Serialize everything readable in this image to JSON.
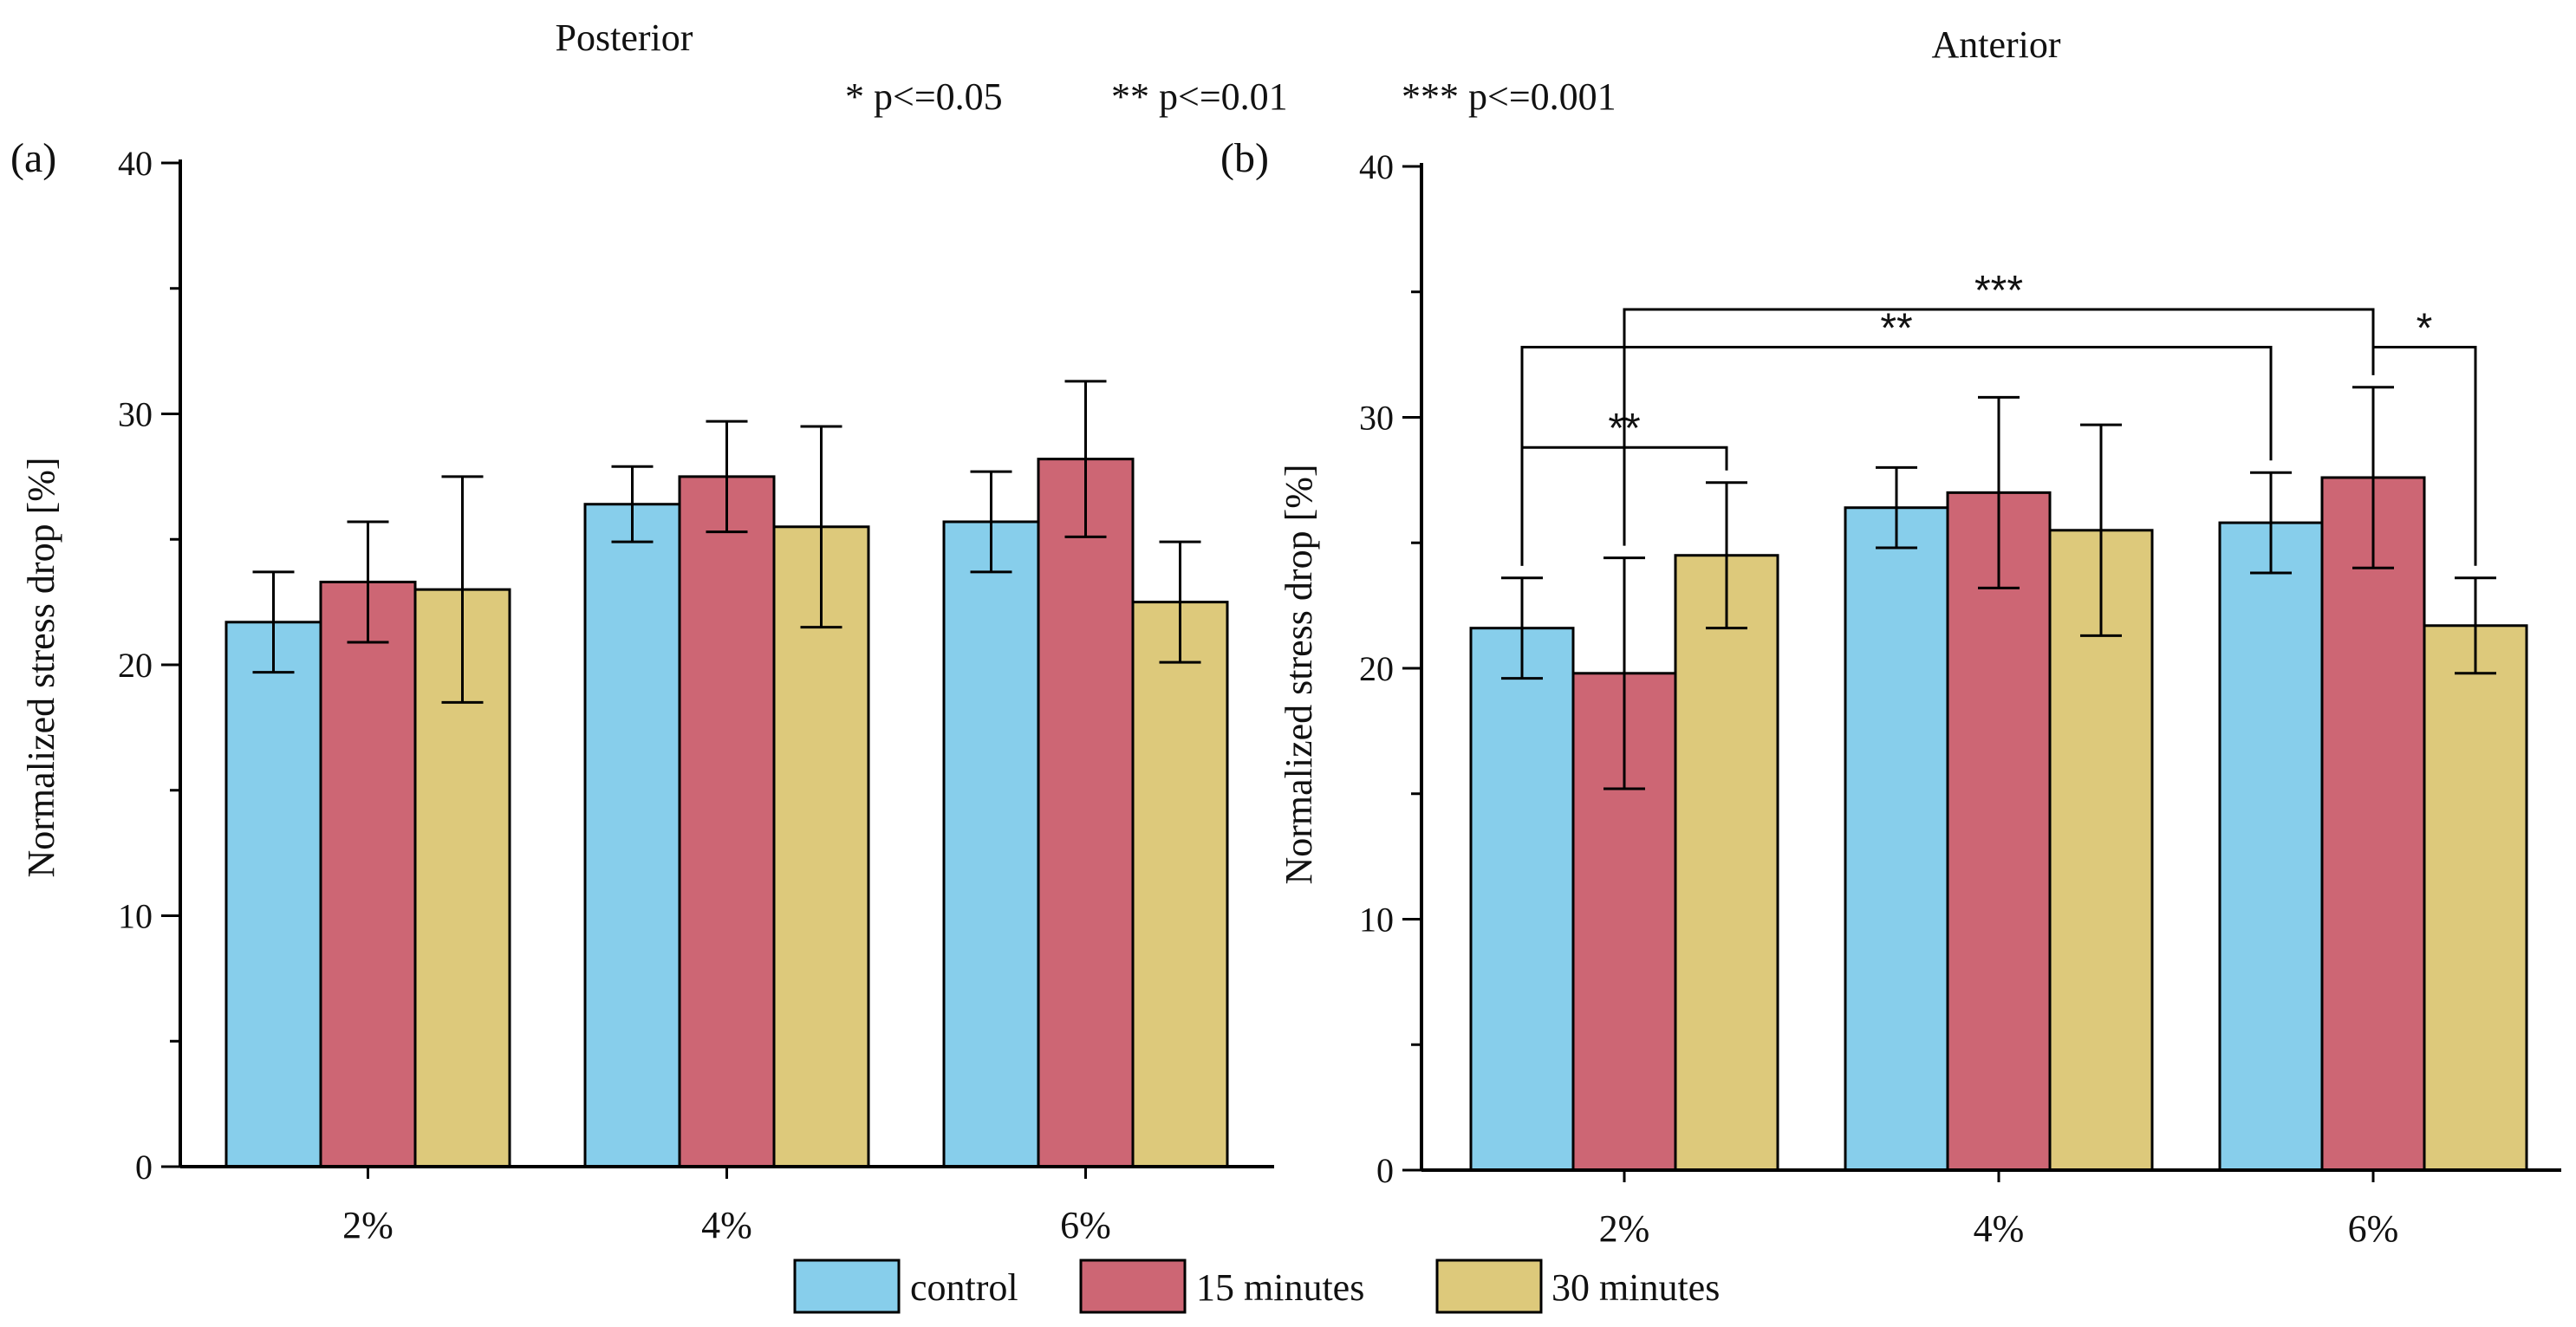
{
  "p_note": [
    "* p<=0.05",
    "** p<=0.01",
    "*** p<=0.001"
  ],
  "legend": [
    {
      "label": "control",
      "color": "#87ceeb"
    },
    {
      "label": "15 minutes",
      "color": "#cd6674"
    },
    {
      "label": "30 minutes",
      "color": "#ddc97b"
    }
  ],
  "chart_data": [
    {
      "type": "bar",
      "panel_label": "(a)",
      "title": "Posterior",
      "ylabel": "Normalized stress drop [%]",
      "ylim": [
        0,
        40
      ],
      "yticks": [
        0,
        10,
        20,
        30,
        40
      ],
      "categories": [
        "2%",
        "4%",
        "6%"
      ],
      "series": [
        {
          "name": "control",
          "color": "#87ceeb",
          "values": [
            21.7,
            26.4,
            25.7
          ],
          "errors": [
            2.0,
            1.5,
            2.0
          ]
        },
        {
          "name": "15 minutes",
          "color": "#cd6674",
          "values": [
            23.3,
            27.5,
            28.2
          ],
          "errors": [
            2.4,
            2.2,
            3.1
          ]
        },
        {
          "name": "30 minutes",
          "color": "#ddc97b",
          "values": [
            23.0,
            25.5,
            22.5
          ],
          "errors": [
            4.5,
            4.0,
            2.4
          ]
        }
      ],
      "significance": []
    },
    {
      "type": "bar",
      "panel_label": "(b)",
      "title": "Anterior",
      "ylabel": "Normalized stress drop [%]",
      "ylim": [
        0,
        40
      ],
      "yticks": [
        0,
        10,
        20,
        30,
        40
      ],
      "categories": [
        "2%",
        "4%",
        "6%"
      ],
      "series": [
        {
          "name": "control",
          "color": "#87ceeb",
          "values": [
            21.6,
            26.4,
            25.8
          ],
          "errors": [
            2.0,
            1.6,
            2.0
          ]
        },
        {
          "name": "15 minutes",
          "color": "#cd6674",
          "values": [
            19.8,
            27.0,
            27.6
          ],
          "errors": [
            4.6,
            3.8,
            3.6
          ]
        },
        {
          "name": "30 minutes",
          "color": "#ddc97b",
          "values": [
            24.5,
            25.5,
            21.7
          ],
          "errors": [
            2.9,
            4.2,
            1.9
          ]
        }
      ],
      "significance": [
        {
          "label": "**",
          "from": {
            "category": 0,
            "series": 0
          },
          "to": {
            "category": 0,
            "series": 2
          },
          "level": 28.8
        },
        {
          "label": "**",
          "from": {
            "category": 0,
            "series": 0
          },
          "to": {
            "category": 2,
            "series": 0
          },
          "level": 32.8
        },
        {
          "label": "***",
          "from": {
            "category": 0,
            "series": 1
          },
          "to": {
            "category": 2,
            "series": 1
          },
          "level": 34.3
        },
        {
          "label": "*",
          "from": {
            "category": 2,
            "series": 1
          },
          "to": {
            "category": 2,
            "series": 2
          },
          "level": 32.8
        }
      ]
    }
  ]
}
